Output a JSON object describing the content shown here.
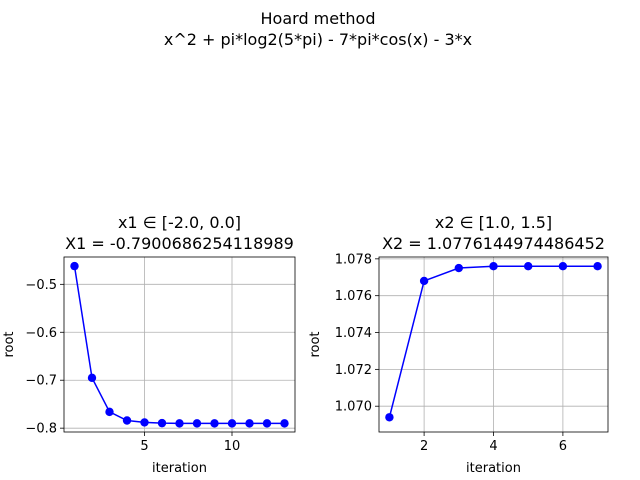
{
  "figure": {
    "title_line1": "Hoard method",
    "title_line2": "x^2 + pi*log2(5*pi) - 7*pi*cos(x) - 3*x"
  },
  "chart_data": [
    {
      "type": "line",
      "title_line1": "x1 ∈ [-2.0, 0.0]",
      "title_line2": "X1 = -0.7900686254118989",
      "xlabel": "iteration",
      "ylabel": "root",
      "grid": true,
      "marker": "circle",
      "color": "#0000ff",
      "xlim": [
        0.4,
        13.6
      ],
      "ylim": [
        -0.808,
        -0.443
      ],
      "xticks": [
        5,
        10
      ],
      "yticks": [
        -0.8,
        -0.7,
        -0.6,
        -0.5
      ],
      "ytick_labels": [
        "−0.8",
        "−0.7",
        "−0.6",
        "−0.5"
      ],
      "x": [
        1,
        2,
        3,
        4,
        5,
        6,
        7,
        8,
        9,
        10,
        11,
        12,
        13
      ],
      "y": [
        -0.462,
        -0.695,
        -0.766,
        -0.784,
        -0.788,
        -0.7895,
        -0.79,
        -0.79,
        -0.79,
        -0.79,
        -0.79,
        -0.79,
        -0.79
      ]
    },
    {
      "type": "line",
      "title_line1": "x2 ∈ [1.0, 1.5]",
      "title_line2": "X2 = 1.0776144974486452",
      "xlabel": "iteration",
      "ylabel": "root",
      "grid": true,
      "marker": "circle",
      "color": "#0000ff",
      "xlim": [
        0.7,
        7.3
      ],
      "ylim": [
        1.0686,
        1.0781
      ],
      "xticks": [
        2,
        4,
        6
      ],
      "yticks": [
        1.07,
        1.072,
        1.074,
        1.076,
        1.078
      ],
      "ytick_labels": [
        "1.070",
        "1.072",
        "1.074",
        "1.076",
        "1.078"
      ],
      "x": [
        1,
        2,
        3,
        4,
        5,
        6,
        7
      ],
      "y": [
        1.0694,
        1.0768,
        1.0775,
        1.0776,
        1.0776,
        1.0776,
        1.0776
      ]
    }
  ]
}
